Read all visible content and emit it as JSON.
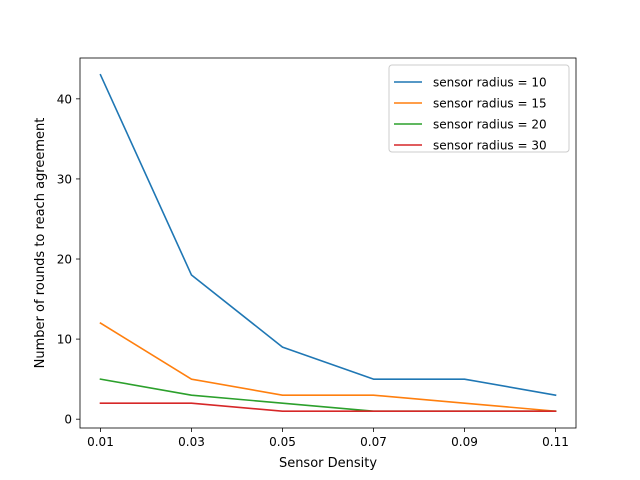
{
  "chart_data": {
    "type": "line",
    "title": "",
    "xlabel": "Sensor Density",
    "ylabel": "Number of rounds to reach agreement",
    "x": [
      0.01,
      0.03,
      0.05,
      0.07,
      0.09,
      0.11
    ],
    "x_tick_labels": [
      "0.01",
      "0.03",
      "0.05",
      "0.07",
      "0.09",
      "0.11"
    ],
    "y_ticks": [
      0,
      10,
      20,
      30,
      40
    ],
    "y_tick_labels": [
      "0",
      "10",
      "20",
      "30",
      "40"
    ],
    "xlim": [
      0.0055,
      0.1145
    ],
    "ylim": [
      -1.1,
      45.1
    ],
    "grid": false,
    "legend_position": "top-right",
    "series": [
      {
        "name": "sensor radius = 10",
        "color": "#1f77b4",
        "values": [
          43,
          18,
          9,
          5,
          5,
          3
        ]
      },
      {
        "name": "sensor radius = 15",
        "color": "#ff7f0e",
        "values": [
          12,
          5,
          3,
          3,
          2,
          1
        ]
      },
      {
        "name": "sensor radius = 20",
        "color": "#2ca02c",
        "values": [
          5,
          3,
          2,
          1,
          1,
          1
        ]
      },
      {
        "name": "sensor radius = 30",
        "color": "#d62728",
        "values": [
          2,
          2,
          1,
          1,
          1,
          1
        ]
      }
    ]
  }
}
